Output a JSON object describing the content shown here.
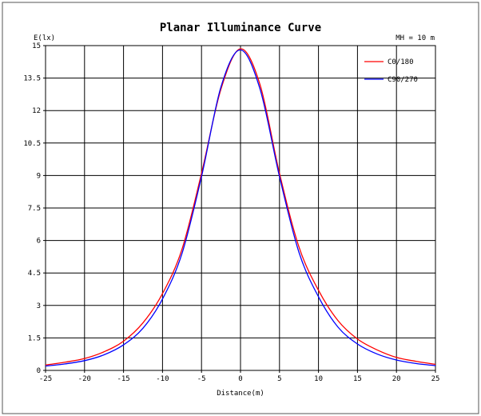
{
  "chart_data": {
    "type": "line",
    "title": "Planar Illuminance Curve",
    "ylabel": "E(lx)",
    "xlabel": "Distance(m)",
    "annotation": "MH = 10 m",
    "xlim": [
      -25,
      25
    ],
    "ylim": [
      0,
      15
    ],
    "x_ticks": [
      "-25",
      "-20",
      "-15",
      "-10",
      "-5",
      "0",
      "5",
      "10",
      "15",
      "20",
      "25"
    ],
    "y_ticks": [
      "0",
      "1.5",
      "3",
      "4.5",
      "6",
      "7.5",
      "9",
      "10.5",
      "12",
      "13.5",
      "15"
    ],
    "grid": true,
    "legend_position": "top-right",
    "x": [
      -25,
      -22.5,
      -20,
      -17.5,
      -15,
      -12.5,
      -10,
      -7.5,
      -5,
      -2.5,
      0,
      2.5,
      5,
      7.5,
      10,
      12.5,
      15,
      17.5,
      20,
      22.5,
      25
    ],
    "series": [
      {
        "name": "C0/180",
        "color": "#ff0000",
        "values": [
          0.25,
          0.38,
          0.55,
          0.86,
          1.35,
          2.2,
          3.55,
          5.6,
          9.1,
          13.0,
          14.85,
          13.2,
          9.1,
          5.7,
          3.7,
          2.3,
          1.45,
          0.95,
          0.6,
          0.42,
          0.28
        ]
      },
      {
        "name": "C90/270",
        "color": "#0000ff",
        "values": [
          0.2,
          0.3,
          0.45,
          0.72,
          1.18,
          1.95,
          3.3,
          5.4,
          8.95,
          13.1,
          14.8,
          13.0,
          8.95,
          5.45,
          3.4,
          2.0,
          1.22,
          0.76,
          0.48,
          0.32,
          0.22
        ]
      }
    ]
  }
}
